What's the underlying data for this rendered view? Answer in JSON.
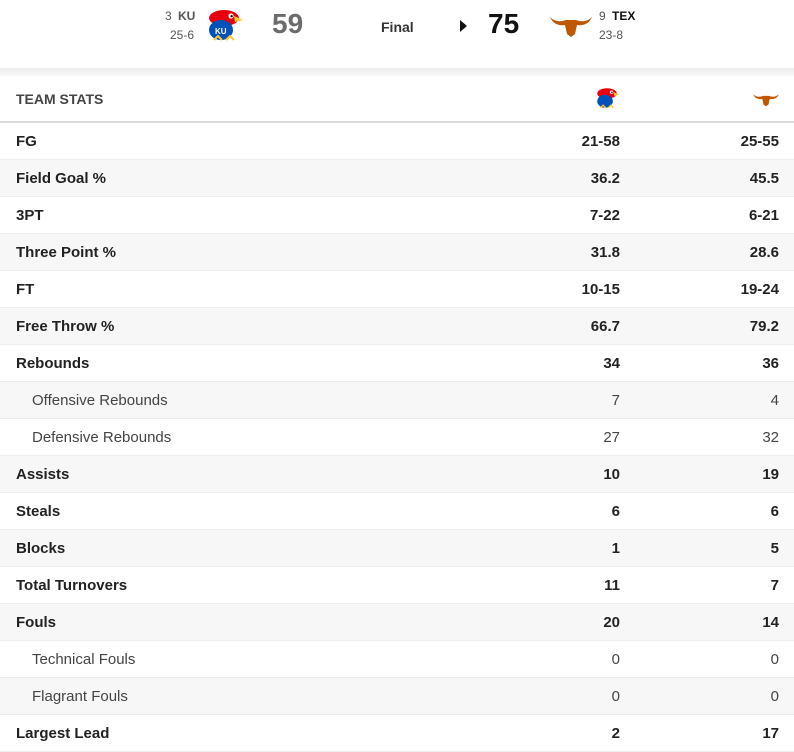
{
  "scoreboard": {
    "away": {
      "rank": "3",
      "abbr": "KU",
      "record": "25-6",
      "score": "59",
      "logo_icon": "jayhawk-logo-icon"
    },
    "status": "Final",
    "winner_indicator_icon": "caret-right-icon",
    "home": {
      "rank": "9",
      "abbr": "TEX",
      "record": "23-8",
      "score": "75",
      "logo_icon": "longhorn-logo-icon"
    }
  },
  "colors": {
    "texas_orange": "#bf5700",
    "kansas_blue": "#0051ba",
    "kansas_red": "#e8000d",
    "kansas_yellow": "#ffc82d"
  },
  "table": {
    "title": "TEAM STATS",
    "rows": [
      {
        "label": "FG",
        "away": "21-58",
        "home": "25-55",
        "sub": false
      },
      {
        "label": "Field Goal %",
        "away": "36.2",
        "home": "45.5",
        "sub": false
      },
      {
        "label": "3PT",
        "away": "7-22",
        "home": "6-21",
        "sub": false
      },
      {
        "label": "Three Point %",
        "away": "31.8",
        "home": "28.6",
        "sub": false
      },
      {
        "label": "FT",
        "away": "10-15",
        "home": "19-24",
        "sub": false
      },
      {
        "label": "Free Throw %",
        "away": "66.7",
        "home": "79.2",
        "sub": false
      },
      {
        "label": "Rebounds",
        "away": "34",
        "home": "36",
        "sub": false
      },
      {
        "label": "Offensive Rebounds",
        "away": "7",
        "home": "4",
        "sub": true
      },
      {
        "label": "Defensive Rebounds",
        "away": "27",
        "home": "32",
        "sub": true
      },
      {
        "label": "Assists",
        "away": "10",
        "home": "19",
        "sub": false
      },
      {
        "label": "Steals",
        "away": "6",
        "home": "6",
        "sub": false
      },
      {
        "label": "Blocks",
        "away": "1",
        "home": "5",
        "sub": false
      },
      {
        "label": "Total Turnovers",
        "away": "11",
        "home": "7",
        "sub": false
      },
      {
        "label": "Fouls",
        "away": "20",
        "home": "14",
        "sub": false
      },
      {
        "label": "Technical Fouls",
        "away": "0",
        "home": "0",
        "sub": true
      },
      {
        "label": "Flagrant Fouls",
        "away": "0",
        "home": "0",
        "sub": true
      },
      {
        "label": "Largest Lead",
        "away": "2",
        "home": "17",
        "sub": false
      }
    ]
  }
}
